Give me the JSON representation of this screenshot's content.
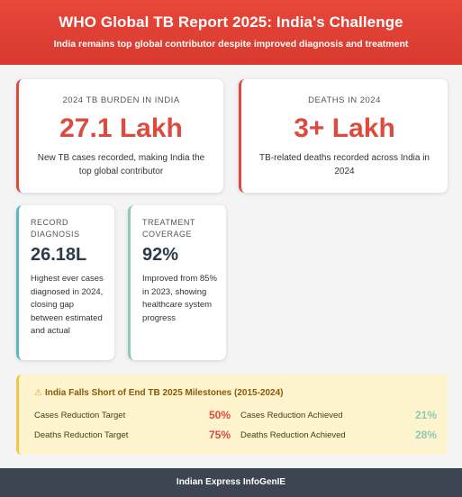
{
  "header": {
    "title": "WHO Global TB Report 2025: India's Challenge",
    "subtitle": "India remains top global contributor despite improved diagnosis and treatment"
  },
  "cards": {
    "burden": {
      "label": "2024 TB BURDEN IN INDIA",
      "value": "27.1 Lakh",
      "desc": "New TB cases recorded, making India the top global contributor"
    },
    "deaths": {
      "label": "DEATHS IN 2024",
      "value": "3+ Lakh",
      "desc": "TB-related deaths recorded across India in 2024"
    },
    "diagnosis": {
      "label": "RECORD DIAGNOSIS",
      "value": "26.18L",
      "desc": "Highest ever cases diagnosed in 2024, closing gap between estimated and actual"
    },
    "coverage": {
      "label": "TREATMENT COVERAGE",
      "value": "92%",
      "desc": "Improved from 85% in 2023, showing healthcare system progress"
    }
  },
  "milestones": {
    "icon": "warning-icon",
    "title": "India Falls Short of End TB 2025 Milestones (2015-2024)",
    "rows": [
      {
        "label": "Cases Reduction Target",
        "value": "50%"
      },
      {
        "label": "Cases Reduction Achieved",
        "value": "21%"
      },
      {
        "label": "Deaths Reduction Target",
        "value": "75%"
      },
      {
        "label": "Deaths Reduction Achieved",
        "value": "28%"
      }
    ]
  },
  "footer": {
    "text": "Indian Express InfoGenIE"
  },
  "colors": {
    "accent_red": "#dd4b3e",
    "accent_blue": "#5bb6c9",
    "accent_green": "#8ccbb5",
    "warning_bg": "#fdf3cc",
    "footer_bg": "#3d4452"
  }
}
